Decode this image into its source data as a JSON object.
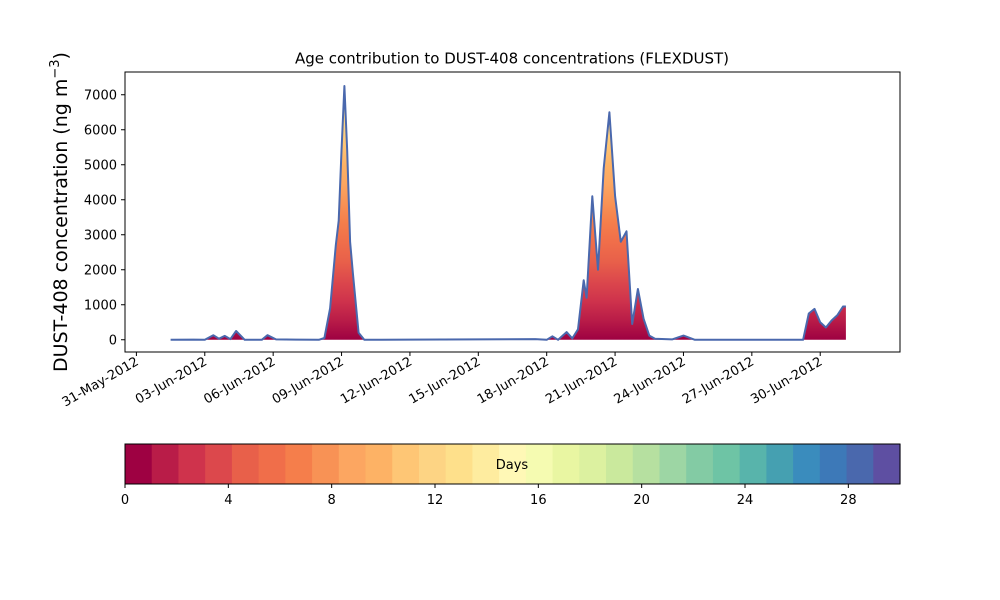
{
  "chart_data": {
    "type": "area",
    "title": "Age contribution to DUST-408 concentrations (FLEXDUST)",
    "ylabel_main": "DUST-408 concentration (ng m",
    "ylabel_sup": "−3",
    "ylabel_close": ")",
    "xlabel": "",
    "x_type": "date",
    "x_range": [
      "2012-05-30T12:00",
      "2012-07-03T12:00"
    ],
    "ylim": [
      -350,
      7650
    ],
    "grid": false,
    "x_ticks": [
      {
        "date": "2012-05-31",
        "label": "31-May-2012"
      },
      {
        "date": "2012-06-03",
        "label": "03-Jun-2012"
      },
      {
        "date": "2012-06-06",
        "label": "06-Jun-2012"
      },
      {
        "date": "2012-06-09",
        "label": "09-Jun-2012"
      },
      {
        "date": "2012-06-12",
        "label": "12-Jun-2012"
      },
      {
        "date": "2012-06-15",
        "label": "15-Jun-2012"
      },
      {
        "date": "2012-06-18",
        "label": "18-Jun-2012"
      },
      {
        "date": "2012-06-21",
        "label": "21-Jun-2012"
      },
      {
        "date": "2012-06-24",
        "label": "24-Jun-2012"
      },
      {
        "date": "2012-06-27",
        "label": "27-Jun-2012"
      },
      {
        "date": "2012-06-30",
        "label": "30-Jun-2012"
      }
    ],
    "y_ticks": [
      0,
      1000,
      2000,
      3000,
      4000,
      5000,
      6000,
      7000
    ],
    "y_tick_labels": [
      "0",
      "1000",
      "2000",
      "3000",
      "4000",
      "5000",
      "6000",
      "7000"
    ],
    "total_series": [
      [
        "2012-06-01T12:00",
        0
      ],
      [
        "2012-06-02T12:00",
        5
      ],
      [
        "2012-06-03T00:00",
        0
      ],
      [
        "2012-06-03T09:00",
        130
      ],
      [
        "2012-06-03T15:00",
        30
      ],
      [
        "2012-06-03T21:00",
        110
      ],
      [
        "2012-06-04T03:00",
        20
      ],
      [
        "2012-06-04T09:00",
        250
      ],
      [
        "2012-06-04T18:00",
        0
      ],
      [
        "2012-06-05T12:00",
        0
      ],
      [
        "2012-06-05T18:00",
        130
      ],
      [
        "2012-06-06T03:00",
        10
      ],
      [
        "2012-06-07T00:00",
        5
      ],
      [
        "2012-06-08T00:00",
        0
      ],
      [
        "2012-06-08T06:00",
        50
      ],
      [
        "2012-06-08T12:00",
        900
      ],
      [
        "2012-06-08T18:00",
        2700
      ],
      [
        "2012-06-08T21:00",
        3400
      ],
      [
        "2012-06-09T00:00",
        5400
      ],
      [
        "2012-06-09T03:00",
        7250
      ],
      [
        "2012-06-09T06:00",
        5400
      ],
      [
        "2012-06-09T09:00",
        2800
      ],
      [
        "2012-06-09T12:00",
        1900
      ],
      [
        "2012-06-09T18:00",
        200
      ],
      [
        "2012-06-10T00:00",
        0
      ],
      [
        "2012-06-12T00:00",
        5
      ],
      [
        "2012-06-17T12:00",
        20
      ],
      [
        "2012-06-18T00:00",
        0
      ],
      [
        "2012-06-18T06:00",
        100
      ],
      [
        "2012-06-18T12:00",
        0
      ],
      [
        "2012-06-18T21:00",
        220
      ],
      [
        "2012-06-19T03:00",
        40
      ],
      [
        "2012-06-19T09:00",
        300
      ],
      [
        "2012-06-19T15:00",
        1700
      ],
      [
        "2012-06-19T18:00",
        1200
      ],
      [
        "2012-06-20T00:00",
        4100
      ],
      [
        "2012-06-20T06:00",
        2000
      ],
      [
        "2012-06-20T12:00",
        4900
      ],
      [
        "2012-06-20T18:00",
        6500
      ],
      [
        "2012-06-21T00:00",
        4100
      ],
      [
        "2012-06-21T06:00",
        2800
      ],
      [
        "2012-06-21T12:00",
        3100
      ],
      [
        "2012-06-21T18:00",
        450
      ],
      [
        "2012-06-22T00:00",
        1450
      ],
      [
        "2012-06-22T06:00",
        600
      ],
      [
        "2012-06-22T12:00",
        120
      ],
      [
        "2012-06-22T18:00",
        30
      ],
      [
        "2012-06-23T12:00",
        10
      ],
      [
        "2012-06-24T00:00",
        120
      ],
      [
        "2012-06-24T12:00",
        0
      ],
      [
        "2012-06-29T06:00",
        0
      ],
      [
        "2012-06-29T12:00",
        750
      ],
      [
        "2012-06-29T18:00",
        880
      ],
      [
        "2012-06-30T00:00",
        500
      ],
      [
        "2012-06-30T06:00",
        350
      ],
      [
        "2012-06-30T12:00",
        550
      ],
      [
        "2012-06-30T18:00",
        700
      ],
      [
        "2012-07-01T00:00",
        950
      ],
      [
        "2012-07-01T03:00",
        950
      ]
    ],
    "series_line_color": "#4a68ad",
    "colorbar": {
      "label": "Days",
      "range": [
        0,
        30
      ],
      "ticks": [
        0,
        4,
        8,
        12,
        16,
        20,
        24,
        28
      ],
      "tick_labels": [
        "0",
        "4",
        "8",
        "12",
        "16",
        "20",
        "24",
        "28"
      ],
      "colors": [
        "#9e0142",
        "#b91c48",
        "#cf334c",
        "#dc484c",
        "#e8604a",
        "#f06e4a",
        "#f57e4b",
        "#f89255",
        "#fca661",
        "#fdb265",
        "#fec675",
        "#fdd484",
        "#fee08b",
        "#feec9f",
        "#fff8b6",
        "#f5fbb1",
        "#e9f6a2",
        "#dcf1a0",
        "#cae99d",
        "#b6e0a0",
        "#9dd6a4",
        "#83cba4",
        "#6ec4a5",
        "#58b4ab",
        "#45a0b1",
        "#3a8cbd",
        "#3d79b8",
        "#4a68ad",
        "#5e4fa2"
      ]
    }
  }
}
